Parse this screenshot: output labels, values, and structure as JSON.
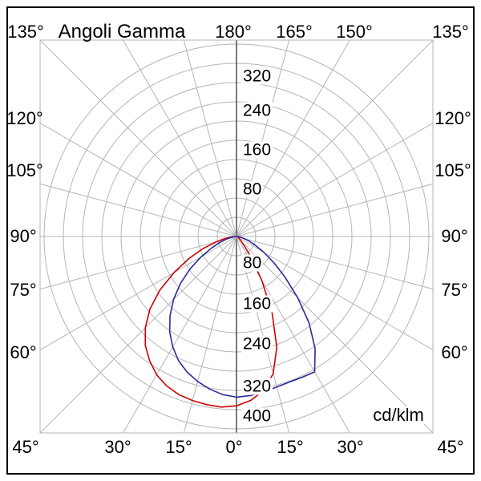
{
  "title": "Angoli Gamma",
  "unit_label": "cd/klm",
  "angle_labels": {
    "top": [
      "135°",
      "180°",
      "165°",
      "150°",
      "135°"
    ],
    "left": [
      "120°",
      "105°",
      "90°",
      "75°",
      "60°"
    ],
    "right": [
      "120°",
      "105°",
      "90°",
      "75°",
      "60°"
    ],
    "bottom": [
      "45°",
      "30°",
      "15°",
      "0°",
      "15°",
      "30°",
      "45°"
    ]
  },
  "radial_labels": {
    "up": [
      "320",
      "240",
      "160",
      "80"
    ],
    "down": [
      "80",
      "160",
      "240",
      "320",
      "400"
    ]
  },
  "chart_data": {
    "type": "polar",
    "subtype": "photometric-luminous-intensity-distribution",
    "title": "Angoli Gamma",
    "unit": "cd/klm",
    "gamma_step_deg": 15,
    "radial_ticks": [
      80,
      160,
      240,
      320,
      400
    ],
    "radial_minor_step": 40,
    "rmax": 400,
    "grid": true,
    "colors": {
      "grid": "#b5b5b5",
      "axis": "#404040"
    },
    "series": [
      {
        "name": "curve-red",
        "color": "#d10000",
        "gamma_deg": [
          -90,
          -85,
          -80,
          -75,
          -70,
          -65,
          -60,
          -55,
          -50,
          -45,
          -40,
          -35,
          -30,
          -25,
          -20,
          -15,
          -10,
          -5,
          0,
          5,
          10,
          15,
          20,
          25,
          30,
          35,
          40,
          50,
          60,
          75,
          90
        ],
        "values_cd_klm": [
          0,
          10,
          25,
          45,
          75,
          110,
          150,
          195,
          235,
          268,
          295,
          315,
          332,
          343,
          350,
          353,
          355,
          356,
          352,
          342,
          325,
          295,
          245,
          175,
          105,
          55,
          25,
          10,
          5,
          2,
          0
        ]
      },
      {
        "name": "curve-blue",
        "color": "#2a2a9c",
        "gamma_deg": [
          -90,
          -85,
          -80,
          -75,
          -70,
          -65,
          -60,
          -55,
          -50,
          -45,
          -40,
          -35,
          -30,
          -25,
          -20,
          -15,
          -10,
          -5,
          0,
          5,
          10,
          15,
          20,
          25,
          30,
          35,
          40,
          45,
          50,
          55,
          60,
          65,
          70,
          75,
          80,
          85,
          90
        ],
        "values_cd_klm": [
          0,
          5,
          12,
          22,
          38,
          58,
          85,
          118,
          152,
          185,
          215,
          242,
          265,
          285,
          300,
          312,
          322,
          330,
          334,
          332,
          328,
          324,
          322,
          323,
          325,
          285,
          235,
          180,
          132,
          95,
          65,
          44,
          28,
          16,
          8,
          3,
          0
        ]
      }
    ]
  }
}
